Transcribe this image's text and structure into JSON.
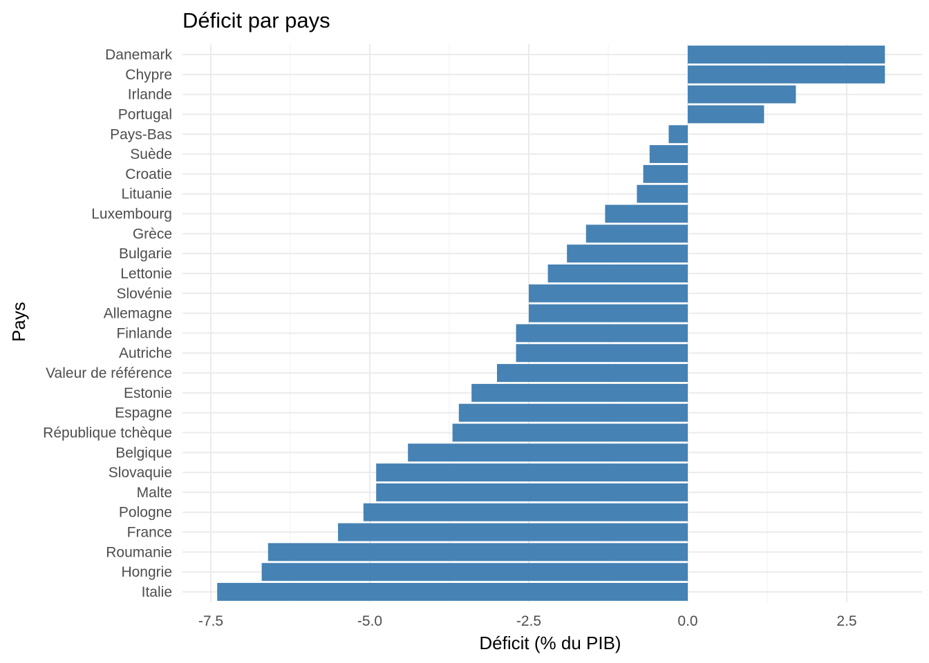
{
  "chart_data": {
    "type": "bar",
    "orientation": "horizontal",
    "title": "Déficit par pays",
    "xlabel": "Déficit (% du PIB)",
    "ylabel": "Pays",
    "xlim": [
      -7.5,
      3.1
    ],
    "xticks": [
      -7.5,
      -5.0,
      -2.5,
      0.0,
      2.5
    ],
    "xtick_labels": [
      "-7.5",
      "-5.0",
      "-2.5",
      "0.0",
      "2.5"
    ],
    "grid": true,
    "legend": "none",
    "bar_color": "#4682b4",
    "categories": [
      "Danemark",
      "Chypre",
      "Irlande",
      "Portugal",
      "Pays-Bas",
      "Suède",
      "Croatie",
      "Lituanie",
      "Luxembourg",
      "Grèce",
      "Bulgarie",
      "Lettonie",
      "Slovénie",
      "Allemagne",
      "Finlande",
      "Autriche",
      "Valeur de référence",
      "Estonie",
      "Espagne",
      "République tchèque",
      "Belgique",
      "Slovaquie",
      "Malte",
      "Pologne",
      "France",
      "Roumanie",
      "Hongrie",
      "Italie"
    ],
    "values": [
      3.1,
      3.1,
      1.7,
      1.2,
      -0.3,
      -0.6,
      -0.7,
      -0.8,
      -1.3,
      -1.6,
      -1.9,
      -2.2,
      -2.5,
      -2.5,
      -2.7,
      -2.7,
      -3.0,
      -3.4,
      -3.6,
      -3.7,
      -4.4,
      -4.9,
      -4.9,
      -5.1,
      -5.5,
      -6.6,
      -6.7,
      -7.4
    ]
  }
}
